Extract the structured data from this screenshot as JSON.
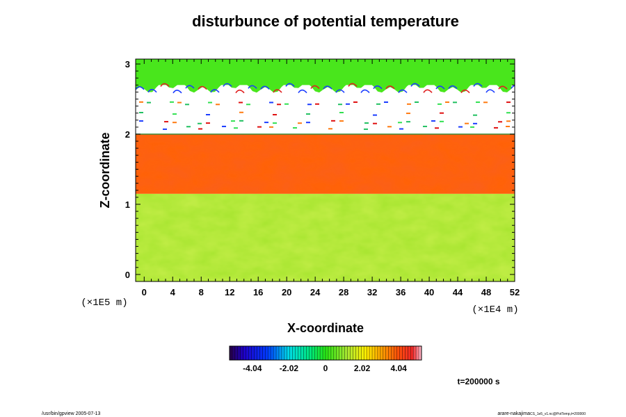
{
  "chart_data": {
    "type": "heatmap",
    "title": "disturbunce of potential temperature",
    "xlabel": "X-coordinate",
    "ylabel": "Z-coordinate",
    "x_unit": "(×1E4 m)",
    "y_unit": "(×1E5 m)",
    "xlim": [
      -1.2,
      52
    ],
    "ylim": [
      -0.1,
      3.07
    ],
    "x_ticks": [
      0,
      4,
      8,
      12,
      16,
      20,
      24,
      28,
      32,
      36,
      40,
      44,
      48,
      52
    ],
    "y_ticks": [
      0,
      1,
      2,
      3
    ],
    "colorbar": {
      "range": [
        -5.3,
        5.3
      ],
      "ticks": [
        -4.04,
        -2.02,
        0,
        2.02,
        4.04
      ],
      "tick_labels": [
        "-4.04",
        "-2.02",
        "0",
        "2.02",
        "4.04"
      ]
    },
    "layers": [
      {
        "z_range": [
          -0.1,
          1.15
        ],
        "value": 1.2,
        "description_color": "#a6e43a"
      },
      {
        "z_range": [
          1.15,
          2.0
        ],
        "value": 3.8,
        "description_color": "#ff6a1a"
      },
      {
        "z_range": [
          2.0,
          2.7
        ],
        "value": null,
        "description_color": "#ffffff"
      },
      {
        "z_range": [
          2.7,
          3.07
        ],
        "value": 0.3,
        "description_color": "#2ee81a"
      }
    ],
    "time_label": "t=200000 s"
  },
  "footer": {
    "left": "/usr/bin/gpview 2005-07-13",
    "right": "arare-nakajima",
    "right_small": "CS_1e5_v1.nc@PotTemp,t=200000"
  }
}
